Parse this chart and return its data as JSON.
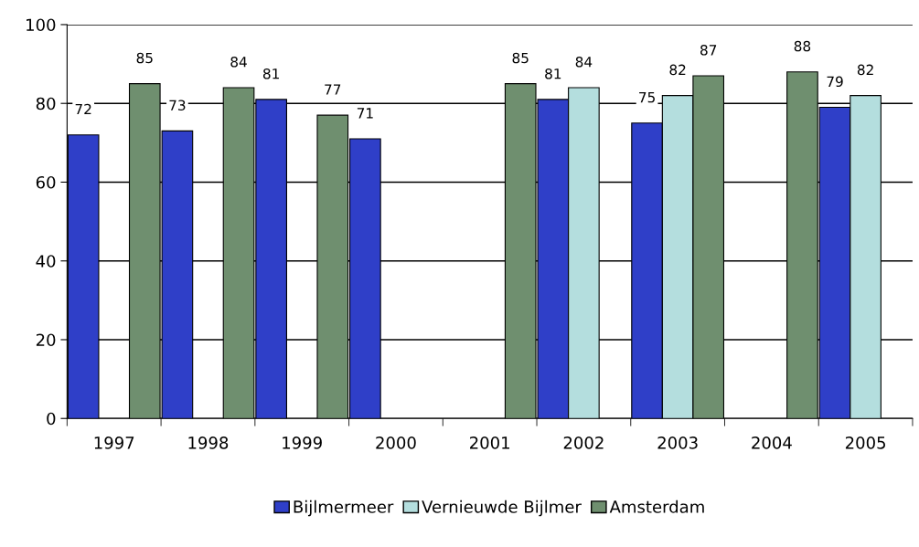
{
  "chart_data": {
    "type": "bar",
    "categories": [
      "1997",
      "1998",
      "1999",
      "2000",
      "2001",
      "2002",
      "2003",
      "2004",
      "2005"
    ],
    "series": [
      {
        "name": "Bijlmermeer",
        "color": "#2f3fc8",
        "values": [
          72,
          73,
          81,
          71,
          null,
          81,
          75,
          null,
          79
        ]
      },
      {
        "name": "Vernieuwde Bijlmer",
        "color": "#b4dede",
        "values": [
          null,
          null,
          null,
          null,
          null,
          84,
          82,
          null,
          82
        ]
      },
      {
        "name": "Amsterdam",
        "color": "#6f8f6f",
        "values": [
          85,
          84,
          77,
          null,
          85,
          null,
          87,
          88,
          null
        ]
      }
    ],
    "ylim": [
      0,
      100
    ],
    "yticks": [
      0,
      20,
      40,
      60,
      80,
      100
    ],
    "grid": "y",
    "legend": "bottom",
    "data_labels": true
  }
}
